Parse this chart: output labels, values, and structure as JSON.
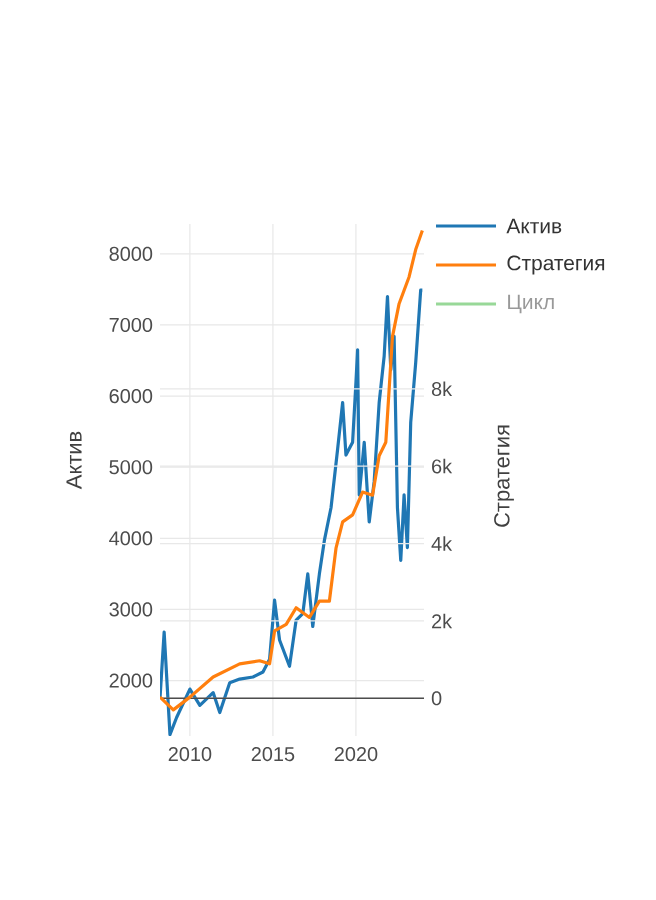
{
  "chart_data": {
    "type": "line",
    "xlabel": null,
    "ylabel": "Актив",
    "y2label": "Стратегия",
    "xlim": [
      2008.2,
      2024.1
    ],
    "xticks": [
      2010,
      2015,
      2020
    ],
    "ylim": [
      1220,
      8420
    ],
    "yticks": [
      2000,
      3000,
      4000,
      5000,
      6000,
      7000,
      8000
    ],
    "y2lim": [
      -975,
      12260
    ],
    "y2ticks": [
      {
        "value": 0,
        "label": "0"
      },
      {
        "value": 2000,
        "label": "2k"
      },
      {
        "value": 4000,
        "label": "4k"
      },
      {
        "value": 6000,
        "label": "6k"
      },
      {
        "value": 8000,
        "label": "8k"
      }
    ],
    "grid": true,
    "legend": "top right",
    "series": [
      {
        "name": "Актив",
        "color": "#1f77b4",
        "x": [
          2008.2,
          2008.45,
          2008.8,
          2009.2,
          2010.0,
          2010.6,
          2011.4,
          2011.8,
          2012.4,
          2013.0,
          2013.8,
          2014.4,
          2014.8,
          2015.1,
          2015.4,
          2016.0,
          2016.4,
          2016.8,
          2017.1,
          2017.4,
          2017.8,
          2018.1,
          2018.5,
          2018.9,
          2019.2,
          2019.4,
          2019.8,
          2020.0,
          2020.1,
          2020.2,
          2020.5,
          2020.8,
          2021.1,
          2021.4,
          2021.7,
          2021.9,
          2022.1,
          2022.3,
          2022.5,
          2022.7,
          2022.9,
          2023.1,
          2023.3,
          2023.6,
          2023.9,
          2024.0
        ],
        "values": [
          1750,
          2680,
          1240,
          1480,
          1880,
          1650,
          1830,
          1550,
          1970,
          2020,
          2050,
          2120,
          2300,
          3130,
          2570,
          2200,
          2850,
          2940,
          3500,
          2760,
          3500,
          3970,
          4430,
          5260,
          5910,
          5170,
          5350,
          6190,
          6650,
          4610,
          5350,
          4230,
          4800,
          5910,
          6560,
          7400,
          6370,
          6840,
          4430,
          3690,
          4610,
          3870,
          5630,
          6470,
          7490,
          7490
        ]
      },
      {
        "name": "Стратегия",
        "color": "#ff7f0e",
        "axis": "y2",
        "x": [
          2008.2,
          2009.0,
          2010.0,
          2011.4,
          2013.0,
          2014.2,
          2014.8,
          2015.1,
          2015.8,
          2016.4,
          2017.2,
          2017.8,
          2018.4,
          2018.8,
          2019.2,
          2019.8,
          2020.4,
          2021.0,
          2021.4,
          2021.8,
          2022.2,
          2022.6,
          2023.2,
          2023.6,
          2024.0
        ],
        "values": [
          30,
          -300,
          30,
          550,
          890,
          970,
          890,
          1740,
          1910,
          2340,
          2090,
          2510,
          2510,
          3880,
          4560,
          4740,
          5330,
          5250,
          6270,
          6620,
          9350,
          10200,
          10890,
          11600,
          12090
        ]
      },
      {
        "name": "Цикл",
        "color": "#98d898"
      }
    ]
  }
}
